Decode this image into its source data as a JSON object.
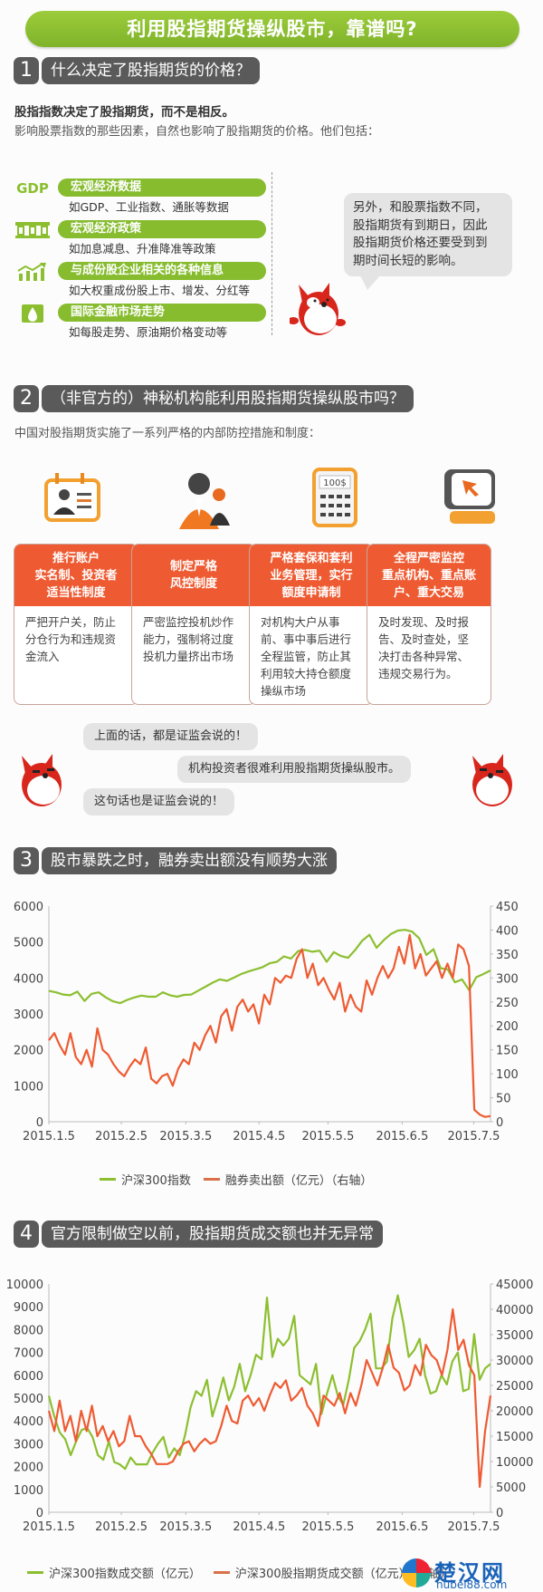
{
  "banner": {
    "title": "利用股指期货操纵股市，靠谱吗?"
  },
  "section1": {
    "num": "1",
    "title": "什么决定了股指期货的价格？",
    "lead_bold": "股指指数决定了股指期货，而不是相反。",
    "lead_text": "影响股票指数的那些因素，自然也影响了股指期货的价格。他们包括：",
    "factors": [
      {
        "icon": "gdp-icon",
        "icon_text": "GDP",
        "title": "宏观经济数据",
        "desc": "如GDP、工业指数、通胀等数据"
      },
      {
        "icon": "bank-icon",
        "icon_text": "",
        "title": "宏观经济政策",
        "desc": "如加息减息、升准降准等政策"
      },
      {
        "icon": "growth-chart-icon",
        "icon_text": "",
        "title": "与成份股企业相关的各种信息",
        "desc": "如大权重成份股上市、增发、分红等"
      },
      {
        "icon": "oil-drop-icon",
        "icon_text": "",
        "title": "国际金融市场走势",
        "desc": "如每股走势、原油期价格变动等"
      }
    ],
    "bubble": [
      "另外，和股票指数不同，",
      "股指期货有到期日，因此",
      "股指期货价格还要受到到",
      "期时间长短的影响。"
    ]
  },
  "section2": {
    "num": "2",
    "title": "（非官方的）神秘机构能利用股指期货操纵股市吗？",
    "lead_text": "中国对股指期货实施了一系列严格的内部防控措施和制度：",
    "cards": [
      {
        "icon": "id-card-icon",
        "head": [
          "推行账户",
          "实名制、投资者",
          "适当性制度"
        ],
        "body": "严把开户关，防止分仓行为和违规资金流入"
      },
      {
        "icon": "business-people-icon",
        "head": [
          "制定严格",
          "风控制度"
        ],
        "body": "严密监控投机炒作能力，强制将过度投机力量挤出市场"
      },
      {
        "icon": "calculator-icon",
        "icon_text": "100$",
        "head": [
          "严格套保和套利",
          "业务管理，实行",
          "额度申请制"
        ],
        "body": "对机构大户从事前、事中事后进行全程监管，防止其利用较大持仓额度操纵市场"
      },
      {
        "icon": "monitor-cursor-icon",
        "head": [
          "全程严密监控",
          "重点机构、重点账",
          "户、重大交易"
        ],
        "body": "及时发现、及时报告、及时查处，坚决打击各种异常、违规交易行为。"
      }
    ],
    "dialog": [
      "上面的话，都是证监会说的！",
      "机构投资者很难利用股指期货操纵股市。",
      "这句话也是证监会说的！"
    ]
  },
  "section3": {
    "num": "3",
    "title": "股市暴跌之时，融券卖出额没有顺势大涨"
  },
  "section4": {
    "num": "4",
    "title": "官方限制做空以前，股指期货成交额也并无异常"
  },
  "colors": {
    "green": "#8cbf30",
    "orange": "#ee5b32",
    "dark_label": "#5a5a5a"
  },
  "chart_data": [
    {
      "type": "line",
      "title": "股市暴跌之时，融券卖出额没有顺势大涨",
      "categories": [
        "2015.1.5",
        "2015.2.5",
        "2015.3.5",
        "2015.4.5",
        "2015.5.5",
        "2015.6.5",
        "2015.7.5"
      ],
      "y_left": {
        "ticks": [
          0,
          1000,
          2000,
          3000,
          4000,
          5000,
          6000
        ],
        "range": [
          0,
          6000
        ]
      },
      "y_right": {
        "ticks": [
          0,
          50,
          100,
          150,
          200,
          250,
          300,
          350,
          400,
          450
        ],
        "range": [
          0,
          450
        ]
      },
      "series": [
        {
          "name": "沪深300指数",
          "axis": "left",
          "color": "#8cbf30",
          "values": [
            3640,
            3600,
            3540,
            3520,
            3620,
            3360,
            3560,
            3600,
            3460,
            3350,
            3300,
            3390,
            3460,
            3510,
            3480,
            3480,
            3600,
            3520,
            3480,
            3530,
            3540,
            3650,
            3760,
            3870,
            3960,
            3920,
            4010,
            4110,
            4180,
            4240,
            4300,
            4410,
            4450,
            4600,
            4540,
            4750,
            4780,
            4730,
            4760,
            4450,
            4720,
            4610,
            4560,
            4780,
            5040,
            5200,
            4840,
            5050,
            5220,
            5320,
            5340,
            5290,
            5100,
            4640,
            4800,
            4270,
            4240,
            3880,
            3960,
            3660,
            4020,
            4110,
            4210
          ]
        },
        {
          "name": "融券卖出额（亿元）（右轴）",
          "axis": "right",
          "color": "#ee5b32",
          "values": [
            170,
            185,
            160,
            140,
            185,
            135,
            120,
            150,
            115,
            195,
            150,
            140,
            120,
            105,
            95,
            115,
            130,
            120,
            155,
            90,
            80,
            95,
            100,
            75,
            110,
            130,
            120,
            165,
            150,
            180,
            200,
            165,
            220,
            235,
            190,
            240,
            255,
            230,
            245,
            205,
            265,
            245,
            300,
            290,
            305,
            300,
            340,
            360,
            300,
            330,
            285,
            300,
            275,
            255,
            290,
            230,
            265,
            240,
            230,
            295,
            265,
            300,
            325,
            300,
            320,
            365,
            330,
            390,
            320,
            350,
            305,
            320,
            335,
            300,
            330,
            300,
            370,
            360,
            325,
            25,
            15,
            10,
            12
          ]
        }
      ],
      "legend": [
        "沪深300指数",
        "融券卖出额（亿元）（右轴）"
      ],
      "legend_position": "bottom",
      "grid": false
    },
    {
      "type": "line",
      "title": "官方限制做空以前，股指期货成交额也并无异常",
      "categories": [
        "2015.1.5",
        "2015.2.5",
        "2015.3.5",
        "2015.4.5",
        "2015.5.5",
        "2015.6.5",
        "2015.7.5"
      ],
      "y_left": {
        "ticks": [
          0,
          1000,
          2000,
          3000,
          4000,
          5000,
          6000,
          7000,
          8000,
          9000,
          10000
        ],
        "range": [
          0,
          10000
        ]
      },
      "y_right": {
        "ticks": [
          0,
          5000,
          10000,
          15000,
          20000,
          25000,
          30000,
          35000,
          40000,
          45000
        ],
        "range": [
          0,
          45000
        ]
      },
      "series": [
        {
          "name": "沪深300指数成交额（亿元）",
          "axis": "left",
          "color": "#8cbf30",
          "values": [
            5100,
            4200,
            3500,
            3200,
            2500,
            3100,
            3600,
            3700,
            3300,
            2500,
            2300,
            3100,
            2200,
            2100,
            1900,
            2400,
            2100,
            2100,
            2100,
            2600,
            3000,
            3300,
            2400,
            2800,
            2500,
            3400,
            4600,
            5300,
            5100,
            5800,
            4200,
            5000,
            5900,
            4900,
            5500,
            6500,
            5300,
            6000,
            6900,
            6700,
            9400,
            6800,
            7600,
            7300,
            7600,
            8600,
            6000,
            5800,
            5600,
            6500,
            4300,
            5200,
            6000,
            5100,
            4700,
            5800,
            7200,
            7500,
            8000,
            8700,
            6300,
            6300,
            6600,
            8500,
            9500,
            8300,
            6800,
            7100,
            7600,
            6000,
            5200,
            5300,
            6000,
            5600,
            6600,
            7000,
            5300,
            5400,
            7800,
            5800,
            6300,
            6500
          ]
        },
        {
          "name": "沪深300股指期货成交额（右轴）",
          "axis": "right",
          "color": "#ee5b32",
          "values": [
            20000,
            16000,
            22000,
            16000,
            19000,
            14000,
            20000,
            16000,
            21000,
            15000,
            17000,
            14000,
            16000,
            13000,
            14000,
            19000,
            15000,
            15000,
            13000,
            11500,
            9500,
            9500,
            9500,
            10000,
            12000,
            13500,
            14000,
            12000,
            13500,
            14500,
            13500,
            14000,
            17000,
            21000,
            18000,
            17500,
            22000,
            23000,
            21000,
            22500,
            20000,
            23000,
            25500,
            24500,
            26000,
            22000,
            23000,
            24500,
            21000,
            19500,
            17000,
            23000,
            22000,
            21000,
            23500,
            19500,
            23500,
            21000,
            25000,
            30000,
            27500,
            25000,
            28500,
            33000,
            28500,
            27500,
            24000,
            25000,
            29000,
            27000,
            33000,
            31000,
            30000,
            27000,
            32000,
            40000,
            32000,
            34000,
            29000,
            27000,
            5000,
            16000,
            23000
          ]
        }
      ],
      "legend": [
        "沪深300指数成交额（亿元）",
        "沪深300股指期货成交额（亿元）（右轴）"
      ],
      "legend_position": "bottom",
      "grid": false
    }
  ],
  "watermark": {
    "main": "楚汉网",
    "sub": "hubei88.com"
  }
}
